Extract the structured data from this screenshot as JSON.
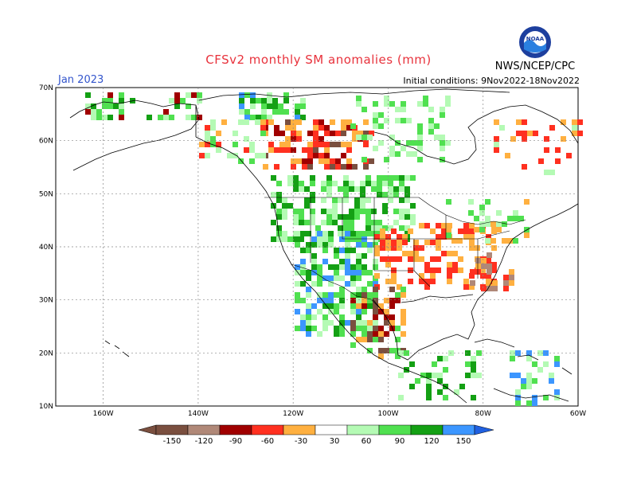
{
  "title": "CFSv2 monthly SM anomalies (mm)",
  "month": "Jan 2023",
  "initial_conditions": "Initial conditions: 9Nov2022-18Nov2022",
  "org": "NWS/NCEP/CPC",
  "logo_text": "NOAA",
  "colors": {
    "neg150": "#7a4f3f",
    "neg120": "#b08878",
    "neg90": "#a00000",
    "neg60": "#ff3020",
    "neg30": "#ffb040",
    "pos30": "#b4fab4",
    "pos60": "#50e050",
    "pos90": "#14a014",
    "pos120": "#3c96ff",
    "pos150": "#2060e0"
  },
  "map": {
    "lon_labels": [
      "160W",
      "140W",
      "120W",
      "100W",
      "80W",
      "60W"
    ],
    "lat_labels": [
      "70N",
      "60N",
      "50N",
      "40N",
      "30N",
      "20N",
      "10N"
    ],
    "lon_range": [
      -170,
      -60
    ],
    "lat_range": [
      10,
      70
    ]
  },
  "colorbar": {
    "labels": [
      "-150",
      "-120",
      "-90",
      "-60",
      "-30",
      "30",
      "60",
      "90",
      "120",
      "150"
    ]
  }
}
